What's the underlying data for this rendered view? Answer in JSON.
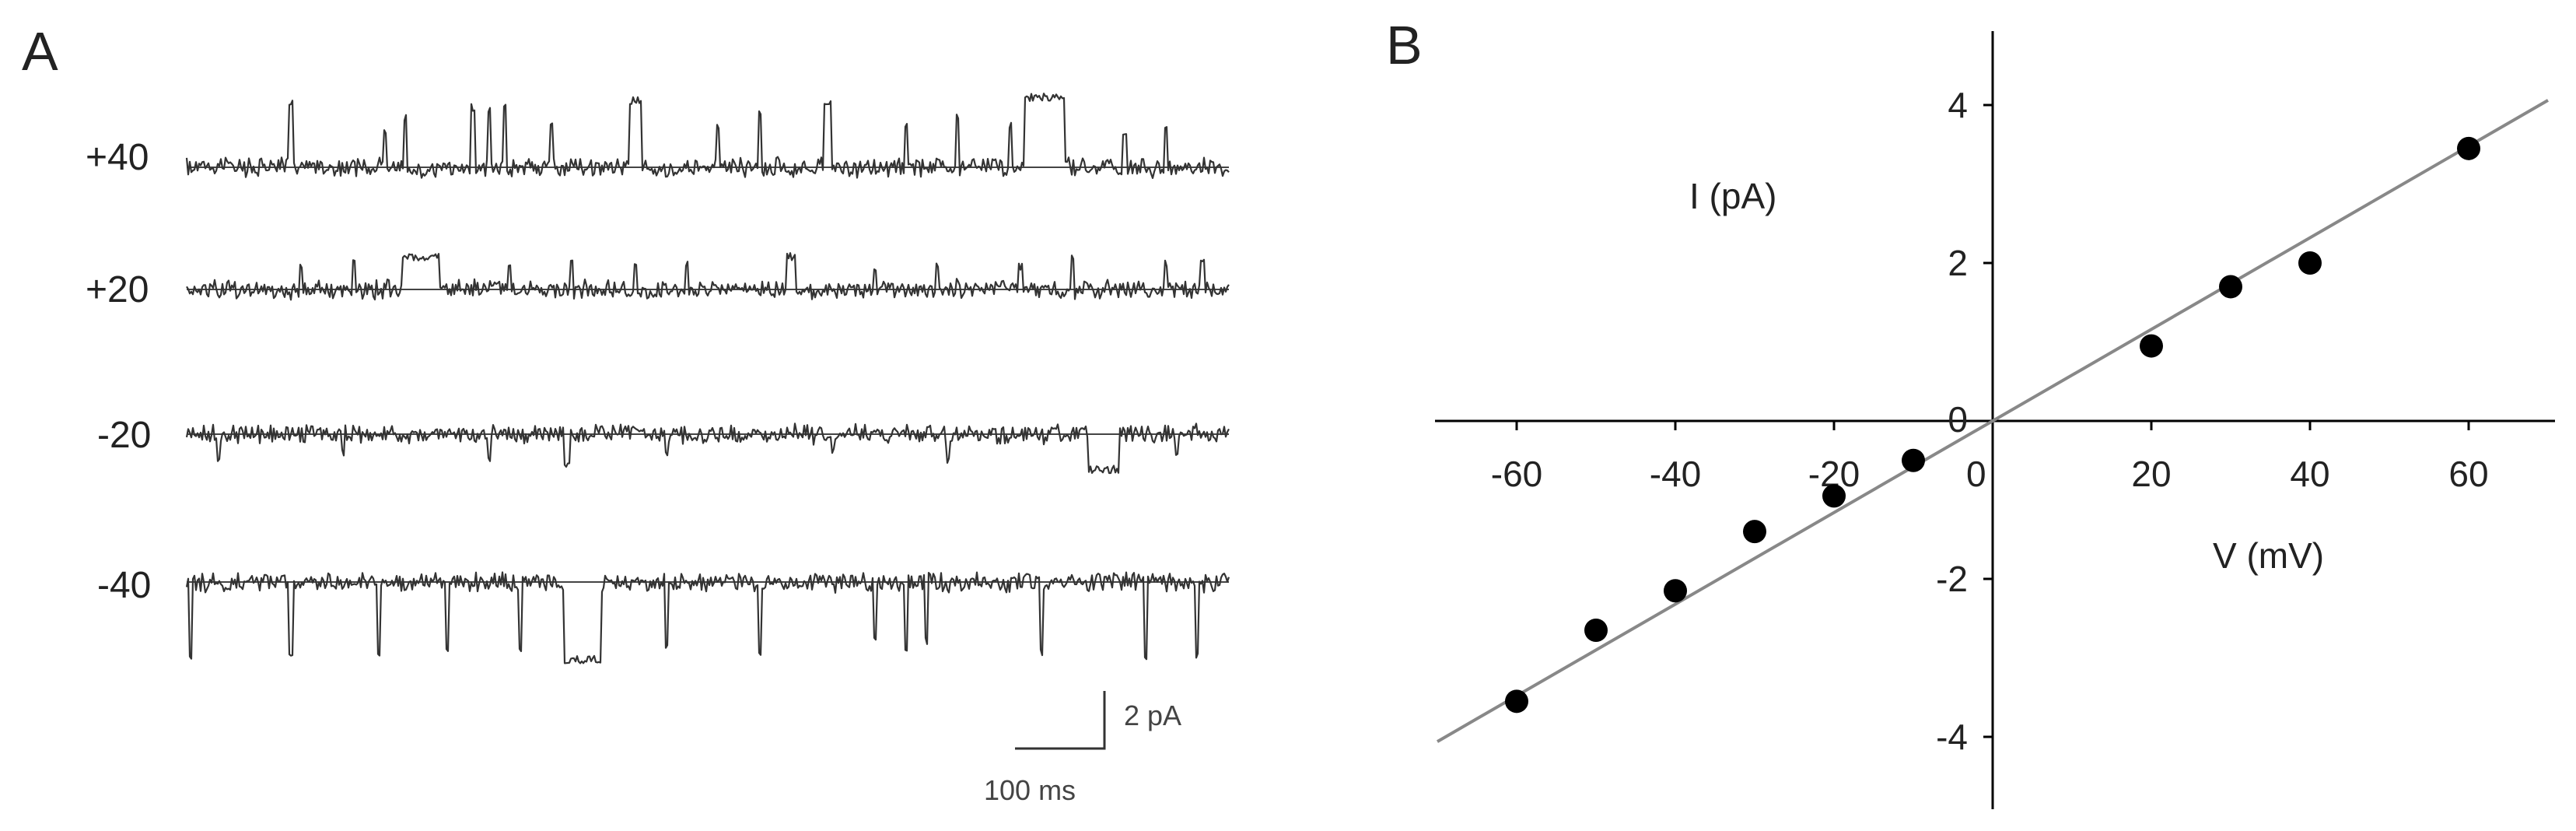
{
  "panelA": {
    "letter": "A",
    "traces": [
      {
        "label": "+40",
        "direction": "up",
        "events": [
          {
            "t": 0.1,
            "d": 0.004,
            "amp": 0.9
          },
          {
            "t": 0.19,
            "d": 0.003,
            "amp": 0.5
          },
          {
            "t": 0.21,
            "d": 0.003,
            "amp": 0.7
          },
          {
            "t": 0.275,
            "d": 0.004,
            "amp": 0.85
          },
          {
            "t": 0.29,
            "d": 0.003,
            "amp": 0.8
          },
          {
            "t": 0.305,
            "d": 0.004,
            "amp": 0.9
          },
          {
            "t": 0.35,
            "d": 0.003,
            "amp": 0.6
          },
          {
            "t": 0.43,
            "d": 0.012,
            "amp": 0.95
          },
          {
            "t": 0.51,
            "d": 0.003,
            "amp": 0.6
          },
          {
            "t": 0.55,
            "d": 0.003,
            "amp": 0.8
          },
          {
            "t": 0.615,
            "d": 0.008,
            "amp": 0.9
          },
          {
            "t": 0.69,
            "d": 0.003,
            "amp": 0.6
          },
          {
            "t": 0.74,
            "d": 0.003,
            "amp": 0.7
          },
          {
            "t": 0.79,
            "d": 0.003,
            "amp": 0.6
          },
          {
            "t": 0.823,
            "d": 0.038,
            "amp": 1.0
          },
          {
            "t": 0.9,
            "d": 0.003,
            "amp": 0.5
          },
          {
            "t": 0.94,
            "d": 0.003,
            "amp": 0.6
          }
        ]
      },
      {
        "label": "+20",
        "direction": "up",
        "events": [
          {
            "t": 0.11,
            "d": 0.003,
            "amp": 0.5
          },
          {
            "t": 0.16,
            "d": 0.003,
            "amp": 0.6
          },
          {
            "t": 0.225,
            "d": 0.036,
            "amp": 0.65
          },
          {
            "t": 0.31,
            "d": 0.003,
            "amp": 0.5
          },
          {
            "t": 0.37,
            "d": 0.003,
            "amp": 0.55
          },
          {
            "t": 0.43,
            "d": 0.003,
            "amp": 0.5
          },
          {
            "t": 0.48,
            "d": 0.003,
            "amp": 0.5
          },
          {
            "t": 0.58,
            "d": 0.009,
            "amp": 0.65
          },
          {
            "t": 0.66,
            "d": 0.003,
            "amp": 0.45
          },
          {
            "t": 0.72,
            "d": 0.003,
            "amp": 0.5
          },
          {
            "t": 0.8,
            "d": 0.003,
            "amp": 0.45
          },
          {
            "t": 0.85,
            "d": 0.003,
            "amp": 0.6
          },
          {
            "t": 0.94,
            "d": 0.003,
            "amp": 0.5
          },
          {
            "t": 0.975,
            "d": 0.004,
            "amp": 0.6
          }
        ]
      },
      {
        "label": "-20",
        "direction": "down",
        "events": [
          {
            "t": 0.03,
            "d": 0.003,
            "amp": 0.55
          },
          {
            "t": 0.15,
            "d": 0.003,
            "amp": 0.35
          },
          {
            "t": 0.29,
            "d": 0.003,
            "amp": 0.5
          },
          {
            "t": 0.365,
            "d": 0.007,
            "amp": 0.65
          },
          {
            "t": 0.46,
            "d": 0.003,
            "amp": 0.35
          },
          {
            "t": 0.62,
            "d": 0.003,
            "amp": 0.35
          },
          {
            "t": 0.73,
            "d": 0.003,
            "amp": 0.55
          },
          {
            "t": 0.88,
            "d": 0.03,
            "amp": 0.7
          },
          {
            "t": 0.95,
            "d": 0.003,
            "amp": 0.35
          }
        ]
      },
      {
        "label": "-40",
        "direction": "down",
        "events": [
          {
            "t": 0.003,
            "d": 0.003,
            "amp": 1.0
          },
          {
            "t": 0.1,
            "d": 0.003,
            "amp": 0.95
          },
          {
            "t": 0.185,
            "d": 0.003,
            "amp": 0.95
          },
          {
            "t": 0.25,
            "d": 0.003,
            "amp": 0.9
          },
          {
            "t": 0.32,
            "d": 0.003,
            "amp": 0.95
          },
          {
            "t": 0.38,
            "d": 0.035,
            "amp": 1.05
          },
          {
            "t": 0.46,
            "d": 0.003,
            "amp": 0.85
          },
          {
            "t": 0.55,
            "d": 0.003,
            "amp": 0.95
          },
          {
            "t": 0.66,
            "d": 0.003,
            "amp": 0.8
          },
          {
            "t": 0.69,
            "d": 0.003,
            "amp": 0.9
          },
          {
            "t": 0.71,
            "d": 0.003,
            "amp": 0.8
          },
          {
            "t": 0.82,
            "d": 0.003,
            "amp": 0.95
          },
          {
            "t": 0.92,
            "d": 0.003,
            "amp": 1.0
          },
          {
            "t": 0.97,
            "d": 0.003,
            "amp": 1.0
          }
        ]
      }
    ],
    "scale_bar": {
      "current_label": "2 pA",
      "time_label": "100 ms"
    }
  },
  "chart_data": {
    "type": "scatter",
    "panel_letter": "B",
    "xlabel": "V (mV)",
    "ylabel": "I (pA)",
    "xlim": [
      -70,
      70
    ],
    "ylim": [
      -5,
      5
    ],
    "xticks": [
      -60,
      -40,
      -20,
      0,
      20,
      40,
      60
    ],
    "xtick_labels": [
      "-60",
      "-40",
      "-20",
      "0",
      "20",
      "40",
      "60"
    ],
    "yticks": [
      -4,
      -2,
      0,
      2,
      4
    ],
    "ytick_labels": [
      "-4",
      "-2",
      "0",
      "2",
      "4"
    ],
    "points": [
      {
        "x": -60,
        "y": -3.55
      },
      {
        "x": -50,
        "y": -2.65
      },
      {
        "x": -40,
        "y": -2.15
      },
      {
        "x": -30,
        "y": -1.4
      },
      {
        "x": -20,
        "y": -0.95
      },
      {
        "x": -10,
        "y": -0.5
      },
      {
        "x": 20,
        "y": 0.95
      },
      {
        "x": 30,
        "y": 1.7
      },
      {
        "x": 40,
        "y": 2.0
      },
      {
        "x": 60,
        "y": 3.45
      }
    ],
    "fit_line": {
      "slope": 0.058,
      "intercept": 0,
      "x_range": [
        -70,
        70
      ]
    },
    "colors": {
      "points": "#000000",
      "fit": "#888888",
      "axes": "#000000"
    }
  }
}
